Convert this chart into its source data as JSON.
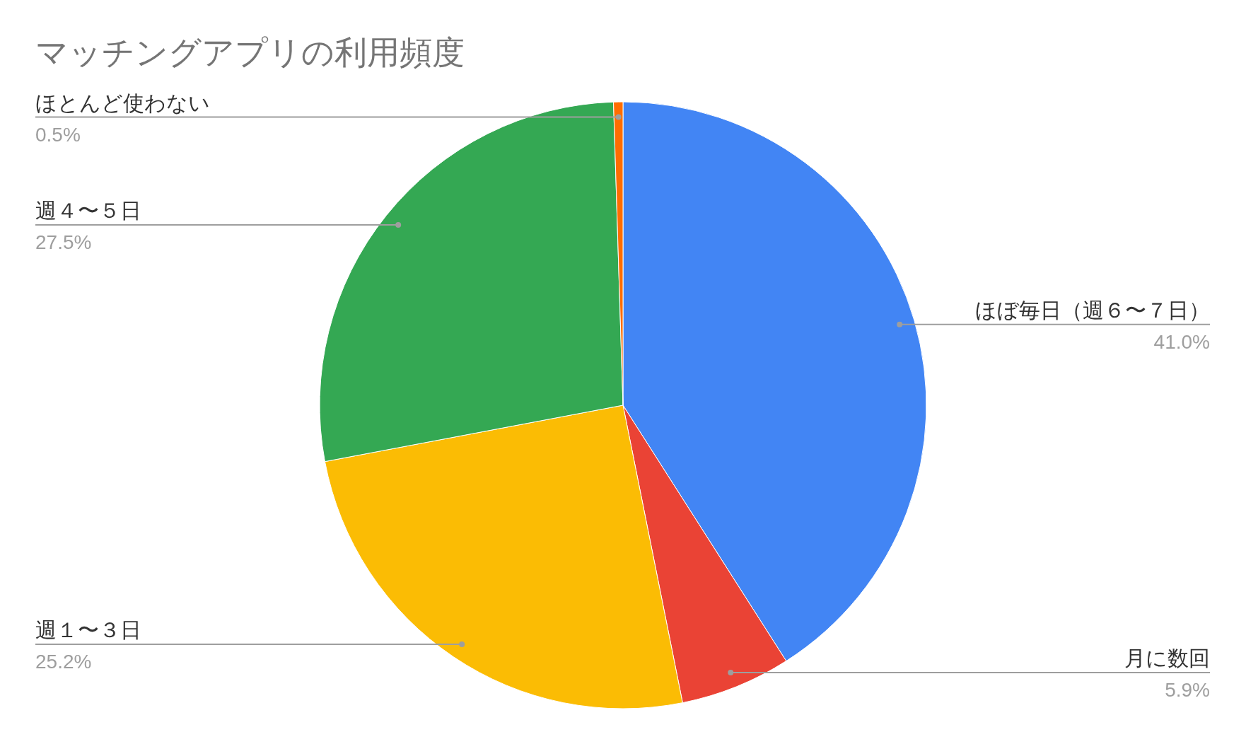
{
  "chart_data": {
    "type": "pie",
    "title": "マッチングアプリの利用頻度",
    "categories": [
      "ほぼ毎日（週６〜７日）",
      "月に数回",
      "週１〜３日",
      "週４〜５日",
      "ほとんど使わない"
    ],
    "values": [
      41.0,
      5.9,
      25.2,
      27.5,
      0.5
    ],
    "value_labels": [
      "41.0%",
      "5.9%",
      "25.2%",
      "27.5%",
      "0.5%"
    ],
    "colors": [
      "#4285f4",
      "#ea4335",
      "#fbbc04",
      "#34a853",
      "#ff6d01"
    ],
    "legend": false
  }
}
